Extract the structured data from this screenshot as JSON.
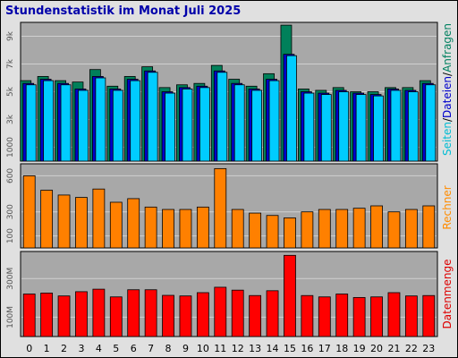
{
  "title": "Stundenstatistik im Monat Juli 2025",
  "legend": {
    "top": [
      {
        "text": "Seiten",
        "color": "#00bcd4"
      },
      {
        "text": "Dateien",
        "color": "#0000cc"
      },
      {
        "text": "Anfragen",
        "color": "#008060"
      }
    ],
    "separator": "/",
    "middle": "Rechner",
    "bottom": "Datenmenge"
  },
  "colors": {
    "anfragen": "#00805a",
    "dateien": "#0000cc",
    "seiten": "#00ccff",
    "rechner": "#ff8000",
    "datenmenge": "#ff0000",
    "plot_bg": "#a8a8a8",
    "grid": "#d0d0d0"
  },
  "chart_data": [
    {
      "type": "bar",
      "title": "Stundenstatistik im Monat Juli 2025",
      "categories": [
        "0",
        "1",
        "2",
        "3",
        "4",
        "5",
        "6",
        "7",
        "8",
        "9",
        "10",
        "11",
        "12",
        "13",
        "14",
        "15",
        "16",
        "17",
        "18",
        "19",
        "20",
        "21",
        "22",
        "23"
      ],
      "ylabel": "Seiten/Dateien/Anfragen",
      "yticks": [
        "1000",
        "3k",
        "5k",
        "7k",
        "9k"
      ],
      "ylim": [
        0,
        10000
      ],
      "series": [
        {
          "name": "Anfragen",
          "values": [
            5800,
            6100,
            5800,
            5700,
            6600,
            5400,
            6100,
            6800,
            5300,
            5500,
            5600,
            6900,
            5900,
            5400,
            6300,
            9800,
            5200,
            5100,
            5300,
            5000,
            5000,
            5300,
            5300,
            5800
          ]
        },
        {
          "name": "Dateien",
          "values": [
            5600,
            5900,
            5600,
            5200,
            6100,
            5200,
            5900,
            6500,
            5000,
            5300,
            5400,
            6500,
            5600,
            5200,
            5900,
            7700,
            5000,
            4900,
            5100,
            4900,
            4800,
            5200,
            5100,
            5600
          ]
        },
        {
          "name": "Seiten",
          "values": [
            5500,
            5800,
            5500,
            5100,
            6000,
            5100,
            5800,
            6400,
            4900,
            5200,
            5300,
            6400,
            5500,
            5100,
            5800,
            7600,
            4900,
            4800,
            5000,
            4800,
            4700,
            5100,
            5000,
            5500
          ]
        }
      ]
    },
    {
      "type": "bar",
      "categories": [
        "0",
        "1",
        "2",
        "3",
        "4",
        "5",
        "6",
        "7",
        "8",
        "9",
        "10",
        "11",
        "12",
        "13",
        "14",
        "15",
        "16",
        "17",
        "18",
        "19",
        "20",
        "21",
        "22",
        "23"
      ],
      "ylabel": "Rechner",
      "yticks": [
        "100",
        "300",
        "600"
      ],
      "ylim": [
        0,
        700
      ],
      "series": [
        {
          "name": "Rechner",
          "values": [
            600,
            480,
            440,
            420,
            490,
            380,
            410,
            340,
            320,
            320,
            340,
            660,
            320,
            290,
            270,
            250,
            300,
            320,
            320,
            330,
            350,
            300,
            320,
            350
          ]
        }
      ]
    },
    {
      "type": "bar",
      "categories": [
        "0",
        "1",
        "2",
        "3",
        "4",
        "5",
        "6",
        "7",
        "8",
        "9",
        "10",
        "11",
        "12",
        "13",
        "14",
        "15",
        "16",
        "17",
        "18",
        "19",
        "20",
        "21",
        "22",
        "23"
      ],
      "ylabel": "Datenmenge",
      "yticks": [
        "100M",
        "300M"
      ],
      "ylim": [
        0,
        440
      ],
      "series": [
        {
          "name": "Datenmenge",
          "values": [
            220,
            225,
            210,
            232,
            245,
            205,
            242,
            242,
            213,
            210,
            227,
            255,
            240,
            212,
            237,
            420,
            212,
            205,
            220,
            202,
            205,
            227,
            210,
            212
          ]
        }
      ]
    }
  ]
}
